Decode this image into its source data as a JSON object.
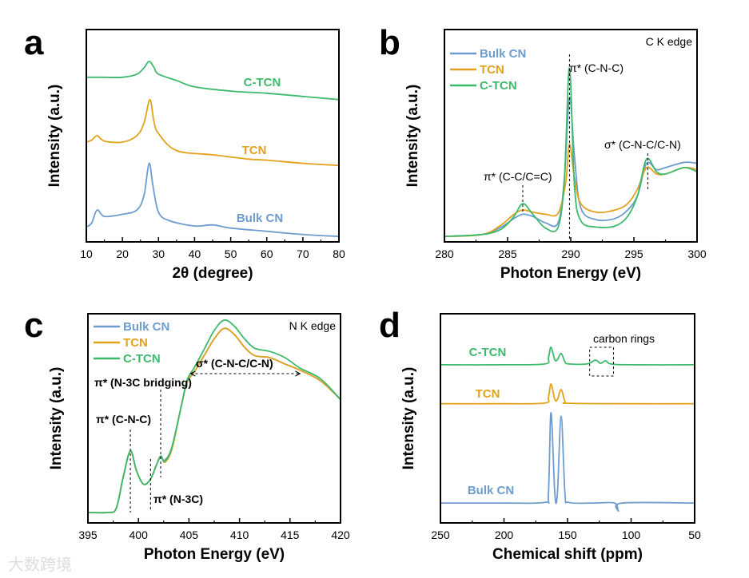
{
  "watermark": "大数跨境",
  "colors": {
    "bulk_cn": "#6d9ccf",
    "tcn": "#e2a21c",
    "c_tcn": "#3cba6c"
  },
  "chart_data": [
    {
      "panel": "a",
      "type": "line",
      "xlabel": "2θ (degree)",
      "ylabel": "Intensity (a.u.)",
      "xlim": [
        10,
        80
      ],
      "ylim": [
        0,
        100
      ],
      "xticks": [
        10,
        20,
        30,
        40,
        50,
        60,
        70,
        80
      ],
      "curve_labels": [
        "C-TCN",
        "TCN",
        "Bulk CN"
      ],
      "series": [
        {
          "name": "Bulk CN",
          "color": "#6d9ccf",
          "points": [
            [
              10,
              7
            ],
            [
              11.5,
              9
            ],
            [
              13,
              15
            ],
            [
              15,
              12
            ],
            [
              20,
              13
            ],
            [
              24,
              15
            ],
            [
              26,
              22
            ],
            [
              27.4,
              37
            ],
            [
              28.5,
              26
            ],
            [
              30,
              14
            ],
            [
              33,
              10
            ],
            [
              40,
              7.5
            ],
            [
              45,
              8
            ],
            [
              50,
              6.5
            ],
            [
              60,
              5
            ],
            [
              70,
              3.5
            ],
            [
              80,
              2.6
            ]
          ]
        },
        {
          "name": "TCN",
          "color": "#e2a21c",
          "points": [
            [
              10,
              47
            ],
            [
              11.5,
              48
            ],
            [
              13,
              50
            ],
            [
              15,
              47.5
            ],
            [
              20,
              47
            ],
            [
              24,
              50
            ],
            [
              26,
              56
            ],
            [
              27.6,
              67
            ],
            [
              28.7,
              57
            ],
            [
              30,
              51
            ],
            [
              35,
              43
            ],
            [
              45,
              41
            ],
            [
              55,
              39
            ],
            [
              60,
              38.5
            ],
            [
              70,
              37
            ],
            [
              80,
              36
            ]
          ]
        },
        {
          "name": "C-TCN",
          "color": "#3cba6c",
          "points": [
            [
              10,
              77.5
            ],
            [
              15,
              77.5
            ],
            [
              20,
              77.5
            ],
            [
              24,
              79
            ],
            [
              26,
              82
            ],
            [
              27.4,
              85
            ],
            [
              28.8,
              82
            ],
            [
              30,
              79
            ],
            [
              35,
              76
            ],
            [
              40,
              73
            ],
            [
              50,
              71
            ],
            [
              60,
              70
            ],
            [
              70,
              68.5
            ],
            [
              80,
              67
            ]
          ]
        }
      ]
    },
    {
      "panel": "b",
      "type": "line",
      "xlabel": "Photon Energy (eV)",
      "ylabel": "Intensity (a.u.)",
      "xlim": [
        280,
        300
      ],
      "ylim": [
        0,
        100
      ],
      "xticks": [
        280,
        285,
        290,
        295,
        300
      ],
      "legend": [
        "Bulk CN",
        "TCN",
        "C-TCN"
      ],
      "legend_position": "top-left",
      "edge_label": "C K edge",
      "annotations": [
        {
          "text": "π* (C-N-C)",
          "x": 289.9
        },
        {
          "text": "π* (C-C/C=C)",
          "x": 286.2
        },
        {
          "text": "σ* (C-N-C/C-N)",
          "x": 296.1
        }
      ],
      "series": [
        {
          "name": "Bulk CN",
          "color": "#6d9ccf",
          "points": [
            [
              280,
              2.6
            ],
            [
              283,
              3.5
            ],
            [
              284.5,
              7
            ],
            [
              285.5,
              11
            ],
            [
              286.2,
              13
            ],
            [
              287,
              12
            ],
            [
              288,
              9
            ],
            [
              289,
              9
            ],
            [
              289.5,
              30
            ],
            [
              289.9,
              68
            ],
            [
              290.3,
              40
            ],
            [
              290.8,
              16
            ],
            [
              292,
              10.5
            ],
            [
              293.5,
              11
            ],
            [
              294.5,
              15
            ],
            [
              295.3,
              22
            ],
            [
              296,
              37
            ],
            [
              296.8,
              34
            ],
            [
              297.5,
              35
            ],
            [
              299,
              37.5
            ],
            [
              300,
              37
            ]
          ]
        },
        {
          "name": "TCN",
          "color": "#e2a21c",
          "points": [
            [
              280,
              2.6
            ],
            [
              283,
              3.5
            ],
            [
              284.5,
              8
            ],
            [
              285.5,
              13
            ],
            [
              286.2,
              15
            ],
            [
              287,
              14
            ],
            [
              288,
              13
            ],
            [
              289,
              13.5
            ],
            [
              289.6,
              28
            ],
            [
              289.9,
              46
            ],
            [
              290.3,
              30
            ],
            [
              290.8,
              18
            ],
            [
              292,
              14
            ],
            [
              293.5,
              15
            ],
            [
              294.5,
              18
            ],
            [
              295.3,
              25
            ],
            [
              296,
              35
            ],
            [
              296.8,
              32
            ],
            [
              297.5,
              32
            ],
            [
              299,
              35
            ],
            [
              300,
              34
            ]
          ]
        },
        {
          "name": "C-TCN",
          "color": "#3cba6c",
          "points": [
            [
              280,
              2.6
            ],
            [
              283,
              3.5
            ],
            [
              284.5,
              6
            ],
            [
              285.5,
              12
            ],
            [
              286.2,
              18
            ],
            [
              287,
              13
            ],
            [
              288,
              6.5
            ],
            [
              289,
              7
            ],
            [
              289.5,
              30
            ],
            [
              289.9,
              82
            ],
            [
              290.3,
              26
            ],
            [
              290.8,
              10
            ],
            [
              292,
              7
            ],
            [
              293.5,
              7.5
            ],
            [
              294.5,
              12
            ],
            [
              295.3,
              22
            ],
            [
              296,
              39
            ],
            [
              296.8,
              33
            ],
            [
              297.5,
              32
            ],
            [
              299,
              35
            ],
            [
              300,
              33
            ]
          ]
        }
      ]
    },
    {
      "panel": "c",
      "type": "line",
      "xlabel": "Photon Energy (eV)",
      "ylabel": "Intensity (a.u.)",
      "xlim": [
        395,
        420
      ],
      "ylim": [
        0,
        100
      ],
      "xticks": [
        395,
        400,
        405,
        410,
        415,
        420
      ],
      "legend": [
        "Bulk CN",
        "TCN",
        "C-TCN"
      ],
      "legend_position": "top-left",
      "edge_label": "N K edge",
      "annotations": [
        {
          "text": "π* (N-3C bridging)",
          "x": 402.2
        },
        {
          "text": "π* (C-N-C)",
          "x": 399.2
        },
        {
          "text": "π* (N-3C)",
          "x": 401.2
        },
        {
          "text": "σ* (C-N-C/C-N)",
          "x_range": [
            405,
            416
          ]
        }
      ],
      "series": [
        {
          "name": "Bulk CN",
          "color": "#6d9ccf",
          "points": [
            [
              395,
              5
            ],
            [
              397,
              5
            ],
            [
              397.8,
              7
            ],
            [
              398.5,
              22
            ],
            [
              399.2,
              34.4
            ],
            [
              399.8,
              25
            ],
            [
              400.5,
              18.5
            ],
            [
              401.2,
              21
            ],
            [
              401.8,
              28
            ],
            [
              402.2,
              31.5
            ],
            [
              402.6,
              30
            ],
            [
              403.3,
              36
            ],
            [
              404.2,
              55
            ],
            [
              404.8,
              67
            ],
            [
              405.5,
              72
            ],
            [
              406.5,
              80
            ],
            [
              407.5,
              88
            ],
            [
              408.5,
              93
            ],
            [
              409.5,
              90
            ],
            [
              410.5,
              84
            ],
            [
              411.5,
              80
            ],
            [
              413,
              79
            ],
            [
              414.5,
              76
            ],
            [
              416,
              73
            ],
            [
              418,
              68
            ],
            [
              420,
              59
            ]
          ]
        },
        {
          "name": "TCN",
          "color": "#e2a21c",
          "points": [
            [
              395,
              5
            ],
            [
              397,
              5
            ],
            [
              397.8,
              7
            ],
            [
              398.5,
              22
            ],
            [
              399.2,
              34.4
            ],
            [
              399.8,
              25
            ],
            [
              400.5,
              18.5
            ],
            [
              401.2,
              21
            ],
            [
              401.8,
              28
            ],
            [
              402.2,
              32
            ],
            [
              402.6,
              29
            ],
            [
              403.3,
              35
            ],
            [
              404.2,
              55
            ],
            [
              404.8,
              67
            ],
            [
              405.5,
              72
            ],
            [
              406.5,
              80
            ],
            [
              407.5,
              88
            ],
            [
              408.5,
              93
            ],
            [
              409.5,
              90
            ],
            [
              410.5,
              84
            ],
            [
              411.5,
              80
            ],
            [
              413,
              79
            ],
            [
              414.5,
              76
            ],
            [
              416,
              73
            ],
            [
              418,
              68
            ],
            [
              420,
              59
            ]
          ]
        },
        {
          "name": "C-TCN",
          "color": "#3cba6c",
          "points": [
            [
              395,
              5
            ],
            [
              397,
              5
            ],
            [
              397.8,
              7
            ],
            [
              398.5,
              22
            ],
            [
              399.2,
              34.4
            ],
            [
              399.8,
              25
            ],
            [
              400.5,
              18.5
            ],
            [
              401.2,
              21
            ],
            [
              401.8,
              28
            ],
            [
              402.2,
              32
            ],
            [
              402.6,
              29.5
            ],
            [
              403.3,
              36
            ],
            [
              404.2,
              55
            ],
            [
              404.8,
              68
            ],
            [
              405.5,
              74
            ],
            [
              406.5,
              83
            ],
            [
              407.5,
              92
            ],
            [
              408.5,
              97
            ],
            [
              409.5,
              94
            ],
            [
              410.5,
              88
            ],
            [
              411.5,
              83.5
            ],
            [
              413,
              82
            ],
            [
              414.5,
              79
            ],
            [
              416,
              74
            ],
            [
              418,
              69
            ],
            [
              420,
              59
            ]
          ]
        }
      ]
    },
    {
      "panel": "d",
      "type": "line",
      "xlabel": "Chemical shift (ppm)",
      "ylabel": "Intensity (a.u.)",
      "xlim": [
        250,
        50
      ],
      "ylim": [
        0,
        100
      ],
      "xticks": [
        250,
        200,
        150,
        100,
        50
      ],
      "curve_labels": [
        "C-TCN",
        "TCN",
        "Bulk CN"
      ],
      "annotations": [
        {
          "text": "carbon rings",
          "x_range": [
            132.6,
            113.8
          ]
        }
      ],
      "series": [
        {
          "name": "Bulk CN",
          "color": "#6d9ccf",
          "points": [
            [
              250,
              9.5
            ],
            [
              200,
              9.5
            ],
            [
              168,
              9.8
            ],
            [
              165,
              14
            ],
            [
              163,
              52.7
            ],
            [
              160,
              14
            ],
            [
              158,
              14
            ],
            [
              155,
              51
            ],
            [
              152,
              14
            ],
            [
              149,
              9.8
            ],
            [
              130,
              9.5
            ],
            [
              113,
              9.5
            ],
            [
              110,
              5.7
            ],
            [
              107,
              9.5
            ],
            [
              50,
              9.5
            ]
          ]
        },
        {
          "name": "TCN",
          "color": "#e2a21c",
          "points": [
            [
              250,
              57
            ],
            [
              200,
              57
            ],
            [
              168,
              57.3
            ],
            [
              165,
              60
            ],
            [
              163,
              66.4
            ],
            [
              160,
              59
            ],
            [
              158,
              59
            ],
            [
              155,
              63.7
            ],
            [
              152,
              58
            ],
            [
              149,
              57.2
            ],
            [
              100,
              57
            ],
            [
              50,
              57
            ]
          ]
        },
        {
          "name": "C-TCN",
          "color": "#3cba6c",
          "points": [
            [
              250,
              75.6
            ],
            [
              200,
              75.6
            ],
            [
              168,
              76
            ],
            [
              165,
              79
            ],
            [
              163,
              84
            ],
            [
              160,
              78
            ],
            [
              158,
              78
            ],
            [
              155,
              81
            ],
            [
              152,
              77
            ],
            [
              149,
              76
            ],
            [
              135,
              76
            ],
            [
              128,
              77.8
            ],
            [
              124,
              76.3
            ],
            [
              120,
              77.5
            ],
            [
              116,
              76
            ],
            [
              100,
              75.6
            ],
            [
              50,
              75.6
            ]
          ]
        }
      ]
    }
  ]
}
